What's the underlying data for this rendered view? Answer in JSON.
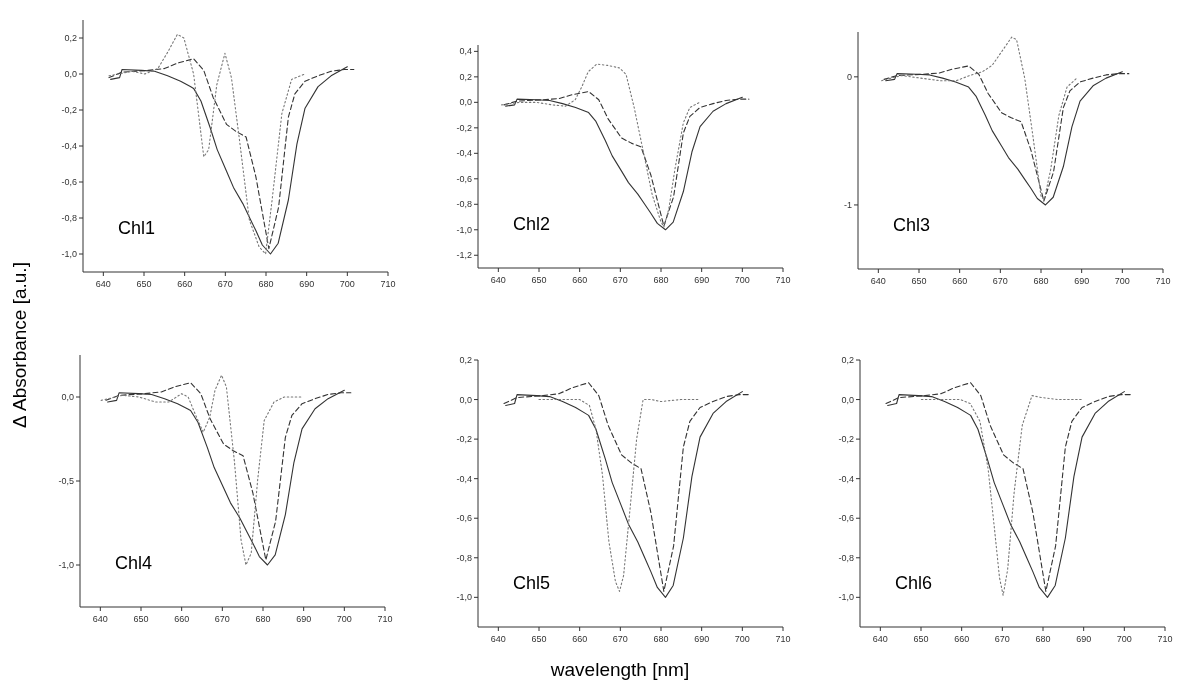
{
  "chart_data": [
    {
      "type": "line",
      "ylabel": "Δ Absorbance [a.u.]",
      "annotations": [
        "Chl1"
      ],
      "xlim": [
        635,
        710
      ],
      "ylim": [
        -1.1,
        0.3
      ],
      "xticks": [
        640,
        650,
        660,
        670,
        680,
        690,
        700,
        710
      ],
      "yticks": [
        {
          "value": -1.0,
          "label": "-1,0"
        },
        {
          "value": -0.8,
          "label": "-0,8"
        },
        {
          "value": -0.6,
          "label": "-0,6"
        },
        {
          "value": -0.4,
          "label": "-0,4"
        },
        {
          "value": -0.2,
          "label": "-0,2"
        },
        {
          "value": 0,
          "label": "0,0"
        },
        {
          "value": 0.2,
          "label": "0,2"
        }
      ],
      "series": [
        {
          "color": "#333333",
          "line_style": "solid",
          "x": [
            641.8,
            644,
            644.6,
            649.4,
            652.6,
            655.8,
            659,
            661.4,
            662.2,
            664,
            666.3,
            668,
            670.3,
            672,
            674.3,
            676,
            677.5,
            679.1,
            681.1,
            683,
            685.5,
            687.6,
            689.6,
            692.8,
            696,
            700
          ],
          "values": [
            -0.03,
            -0.02,
            0.025,
            0.02,
            0.015,
            -0.01,
            -0.04,
            -0.07,
            -0.08,
            -0.15,
            -0.3,
            -0.42,
            -0.54,
            -0.63,
            -0.72,
            -0.8,
            -0.87,
            -0.95,
            -1.0,
            -0.94,
            -0.7,
            -0.39,
            -0.19,
            -0.07,
            -0.01,
            0.04
          ]
        },
        {
          "color": "#333333",
          "line_style": "dashed",
          "x": [
            641.4,
            644.6,
            651,
            655,
            658.2,
            662.2,
            664.7,
            667,
            670.3,
            672.7,
            675.1,
            677.5,
            680.7,
            683.1,
            685.5,
            687.1,
            689.6,
            692.8,
            696,
            699.2,
            701.6
          ],
          "values": [
            -0.02,
            0.01,
            0.02,
            0.03,
            0.06,
            0.085,
            0.02,
            -0.13,
            -0.28,
            -0.32,
            -0.35,
            -0.57,
            -0.97,
            -0.74,
            -0.24,
            -0.11,
            -0.04,
            -0.01,
            0.015,
            0.025,
            0.025
          ]
        },
        {
          "color": "#777777",
          "line_style": "dotted",
          "x": [
            641.4,
            647,
            650.2,
            653.4,
            655.8,
            658.2,
            659.8,
            662.2,
            664.7,
            665.9,
            667.9,
            669.9,
            671.5,
            673.5,
            675.9,
            678.3,
            679.9,
            681.5,
            683.9,
            686.3,
            689.6
          ],
          "values": [
            -0.01,
            0.015,
            0.0,
            0.03,
            0.12,
            0.22,
            0.2,
            0.0,
            -0.46,
            -0.42,
            -0.06,
            0.115,
            -0.02,
            -0.37,
            -0.81,
            -0.96,
            -1.0,
            -0.7,
            -0.22,
            -0.03,
            0.0
          ]
        }
      ]
    },
    {
      "type": "line",
      "annotations": [
        "Chl2"
      ],
      "xlim": [
        635,
        710
      ],
      "ylim": [
        -1.3,
        0.45
      ],
      "xticks": [
        640,
        650,
        660,
        670,
        680,
        690,
        700,
        710
      ],
      "yticks": [
        {
          "value": -1.2,
          "label": "-1,2"
        },
        {
          "value": -1.0,
          "label": "-1,0"
        },
        {
          "value": -0.8,
          "label": "-0,8"
        },
        {
          "value": -0.6,
          "label": "-0,6"
        },
        {
          "value": -0.4,
          "label": "-0,4"
        },
        {
          "value": -0.2,
          "label": "-0,2"
        },
        {
          "value": 0,
          "label": "0,0"
        },
        {
          "value": 0.2,
          "label": "0,2"
        },
        {
          "value": 0.4,
          "label": "0,4"
        }
      ],
      "series": [
        {
          "color": "#333333",
          "line_style": "solid",
          "x": [
            641.8,
            644,
            644.6,
            649.4,
            652.6,
            655.8,
            659,
            661.4,
            662.2,
            664,
            666.3,
            668,
            670.3,
            672,
            674.3,
            676,
            677.5,
            679.1,
            681.1,
            683,
            685.5,
            687.6,
            689.6,
            692.8,
            696,
            700
          ],
          "values": [
            -0.03,
            -0.02,
            0.025,
            0.02,
            0.015,
            -0.01,
            -0.04,
            -0.07,
            -0.08,
            -0.15,
            -0.3,
            -0.42,
            -0.54,
            -0.63,
            -0.72,
            -0.8,
            -0.87,
            -0.95,
            -1.0,
            -0.94,
            -0.7,
            -0.39,
            -0.19,
            -0.07,
            -0.01,
            0.04
          ]
        },
        {
          "color": "#333333",
          "line_style": "dashed",
          "x": [
            641.4,
            644.6,
            651,
            655,
            658.2,
            662.2,
            664.7,
            667,
            670.3,
            672.7,
            675.1,
            677.5,
            680.7,
            683.1,
            685.5,
            687.1,
            689.6,
            692.8,
            696,
            699.2,
            701.6
          ],
          "values": [
            -0.02,
            0.01,
            0.02,
            0.03,
            0.06,
            0.085,
            0.02,
            -0.13,
            -0.28,
            -0.32,
            -0.35,
            -0.57,
            -0.97,
            -0.74,
            -0.24,
            -0.11,
            -0.04,
            -0.01,
            0.015,
            0.025,
            0.025
          ]
        },
        {
          "color": "#777777",
          "line_style": "dotted",
          "x": [
            640.8,
            645.2,
            649.3,
            653.3,
            656.5,
            658.9,
            660.5,
            662.1,
            664.2,
            666.9,
            669.8,
            671.4,
            673.4,
            675.8,
            677.8,
            679.9,
            680.7,
            681.9,
            683.5,
            685.5,
            687.1,
            689.5
          ],
          "values": [
            -0.02,
            0.0,
            0.0,
            -0.02,
            -0.03,
            0.02,
            0.12,
            0.24,
            0.3,
            0.29,
            0.27,
            0.22,
            -0.04,
            -0.41,
            -0.72,
            -0.93,
            -0.98,
            -0.84,
            -0.51,
            -0.16,
            -0.04,
            0.0
          ]
        }
      ]
    },
    {
      "type": "line",
      "annotations": [
        "Chl3"
      ],
      "xlim": [
        635,
        710
      ],
      "ylim": [
        -1.5,
        0.35
      ],
      "xticks": [
        640,
        650,
        660,
        670,
        680,
        690,
        700,
        710
      ],
      "yticks": [
        -1,
        0
      ],
      "series": [
        {
          "color": "#333333",
          "line_style": "solid",
          "x": [
            641.8,
            644,
            644.6,
            649.4,
            652.6,
            655.8,
            659,
            661.4,
            662.2,
            664,
            666.3,
            668,
            670.3,
            672,
            674.3,
            676,
            677.5,
            679.1,
            681.1,
            683,
            685.5,
            687.6,
            689.6,
            692.8,
            696,
            700
          ],
          "values": [
            -0.03,
            -0.02,
            0.025,
            0.02,
            0.015,
            -0.01,
            -0.04,
            -0.07,
            -0.08,
            -0.15,
            -0.3,
            -0.42,
            -0.54,
            -0.63,
            -0.72,
            -0.8,
            -0.87,
            -0.95,
            -1.0,
            -0.94,
            -0.7,
            -0.39,
            -0.19,
            -0.07,
            -0.01,
            0.04
          ]
        },
        {
          "color": "#333333",
          "line_style": "dashed",
          "x": [
            641.4,
            644.6,
            651,
            655,
            658.2,
            662.2,
            664.7,
            667,
            670.3,
            672.7,
            675.1,
            677.5,
            680.7,
            683.1,
            685.5,
            687.1,
            689.6,
            692.8,
            696,
            699.2,
            701.6
          ],
          "values": [
            -0.02,
            0.01,
            0.02,
            0.03,
            0.06,
            0.085,
            0.02,
            -0.13,
            -0.28,
            -0.32,
            -0.35,
            -0.57,
            -0.97,
            -0.74,
            -0.24,
            -0.11,
            -0.04,
            -0.01,
            0.015,
            0.025,
            0.025
          ]
        },
        {
          "color": "#777777",
          "line_style": "dotted",
          "x": [
            640.8,
            645.6,
            650.4,
            655.2,
            659.2,
            662.4,
            665.6,
            668,
            670.4,
            672.8,
            674,
            676,
            678,
            680,
            680.8,
            682.4,
            684.4,
            686.4,
            688.8
          ],
          "values": [
            -0.03,
            0.01,
            -0.01,
            -0.03,
            -0.03,
            0.01,
            0.04,
            0.09,
            0.2,
            0.31,
            0.29,
            -0.01,
            -0.46,
            -0.93,
            -0.96,
            -0.72,
            -0.3,
            -0.08,
            -0.01
          ]
        }
      ]
    },
    {
      "type": "line",
      "annotations": [
        "Chl4"
      ],
      "xlim": [
        635,
        710
      ],
      "ylim": [
        -1.25,
        0.25
      ],
      "xticks": [
        640,
        650,
        660,
        670,
        680,
        690,
        700,
        710
      ],
      "yticks": [
        {
          "value": -1.0,
          "label": "-1,0"
        },
        {
          "value": -0.5,
          "label": "-0,5"
        },
        {
          "value": 0,
          "label": "0,0"
        }
      ],
      "series": [
        {
          "color": "#333333",
          "line_style": "solid",
          "x": [
            641.8,
            644,
            644.6,
            649.4,
            652.6,
            655.8,
            659,
            661.4,
            662.2,
            664,
            666.3,
            668,
            670.3,
            672,
            674.3,
            676,
            677.5,
            679.1,
            681.1,
            683,
            685.5,
            687.6,
            689.6,
            692.8,
            696,
            700
          ],
          "values": [
            -0.03,
            -0.02,
            0.025,
            0.02,
            0.015,
            -0.01,
            -0.04,
            -0.07,
            -0.08,
            -0.15,
            -0.3,
            -0.42,
            -0.54,
            -0.63,
            -0.72,
            -0.8,
            -0.87,
            -0.95,
            -1.0,
            -0.94,
            -0.7,
            -0.39,
            -0.19,
            -0.07,
            -0.01,
            0.04
          ]
        },
        {
          "color": "#333333",
          "line_style": "dashed",
          "x": [
            641.4,
            644.6,
            651,
            655,
            658.2,
            662.2,
            664.7,
            667,
            670.3,
            672.7,
            675.1,
            677.5,
            680.7,
            683.1,
            685.5,
            687.1,
            689.6,
            692.8,
            696,
            699.2,
            701.6
          ],
          "values": [
            -0.02,
            0.01,
            0.02,
            0.03,
            0.06,
            0.085,
            0.02,
            -0.13,
            -0.28,
            -0.32,
            -0.35,
            -0.57,
            -0.97,
            -0.74,
            -0.24,
            -0.11,
            -0.04,
            -0.01,
            0.015,
            0.025,
            0.025
          ]
        },
        {
          "color": "#777777",
          "line_style": "dotted",
          "x": [
            640.2,
            645.5,
            649.5,
            653.6,
            656.8,
            660,
            661.6,
            663.3,
            665.3,
            666.9,
            668.2,
            669.8,
            671,
            673,
            674.6,
            675.8,
            677.1,
            678.7,
            680.3,
            682.7,
            685.2,
            689.6
          ],
          "values": [
            -0.02,
            0.01,
            0.0,
            -0.03,
            -0.03,
            0.02,
            0.0,
            -0.1,
            -0.21,
            -0.12,
            0.04,
            0.13,
            0.06,
            -0.39,
            -0.85,
            -1.0,
            -0.93,
            -0.49,
            -0.14,
            -0.03,
            0.0,
            0.0
          ]
        }
      ]
    },
    {
      "type": "line",
      "xlabel": "wavelength [nm]",
      "annotations": [
        "Chl5"
      ],
      "xlim": [
        635,
        710
      ],
      "ylim": [
        -1.15,
        0.2
      ],
      "xticks": [
        640,
        650,
        660,
        670,
        680,
        690,
        700,
        710
      ],
      "yticks": [
        {
          "value": -1.0,
          "label": "-1,0"
        },
        {
          "value": -0.8,
          "label": "-0,8"
        },
        {
          "value": -0.6,
          "label": "-0,6"
        },
        {
          "value": -0.4,
          "label": "-0,4"
        },
        {
          "value": -0.2,
          "label": "-0,2"
        },
        {
          "value": 0,
          "label": "0,0"
        },
        {
          "value": 0.2,
          "label": "0,2"
        }
      ],
      "series": [
        {
          "color": "#333333",
          "line_style": "solid",
          "x": [
            641.8,
            644,
            644.6,
            649.4,
            652.6,
            655.8,
            659,
            661.4,
            662.2,
            664,
            666.3,
            668,
            670.3,
            672,
            674.3,
            676,
            677.5,
            679.1,
            681.1,
            683,
            685.5,
            687.6,
            689.6,
            692.8,
            696,
            700
          ],
          "values": [
            -0.03,
            -0.02,
            0.025,
            0.02,
            0.015,
            -0.01,
            -0.04,
            -0.07,
            -0.08,
            -0.15,
            -0.3,
            -0.42,
            -0.54,
            -0.63,
            -0.72,
            -0.8,
            -0.87,
            -0.95,
            -1.0,
            -0.94,
            -0.7,
            -0.39,
            -0.19,
            -0.07,
            -0.01,
            0.04
          ]
        },
        {
          "color": "#333333",
          "line_style": "dashed",
          "x": [
            641.4,
            644.6,
            651,
            655,
            658.2,
            662.2,
            664.7,
            667,
            670.3,
            672.7,
            675.1,
            677.5,
            680.7,
            683.1,
            685.5,
            687.1,
            689.6,
            692.8,
            696,
            699.2,
            701.6
          ],
          "values": [
            -0.02,
            0.01,
            0.02,
            0.03,
            0.06,
            0.085,
            0.02,
            -0.13,
            -0.28,
            -0.32,
            -0.35,
            -0.57,
            -0.97,
            -0.74,
            -0.24,
            -0.11,
            -0.04,
            -0.01,
            0.015,
            0.025,
            0.025
          ]
        },
        {
          "color": "#777777",
          "line_style": "dotted",
          "x": [
            650,
            654.4,
            660,
            662.4,
            664,
            665.6,
            667.2,
            668.8,
            669.8,
            670.8,
            672.4,
            674,
            675.6,
            677.6,
            680,
            684.8,
            689.6
          ],
          "values": [
            0.0,
            0.0,
            0.0,
            -0.03,
            -0.15,
            -0.38,
            -0.72,
            -0.92,
            -0.97,
            -0.89,
            -0.55,
            -0.2,
            0.0,
            0.0,
            -0.01,
            0.0,
            0.0
          ]
        }
      ]
    },
    {
      "type": "line",
      "annotations": [
        "Chl6"
      ],
      "xlim": [
        635,
        710
      ],
      "ylim": [
        -1.15,
        0.2
      ],
      "xticks": [
        640,
        650,
        660,
        670,
        680,
        690,
        700,
        710
      ],
      "yticks": [
        {
          "value": -1.0,
          "label": "-1,0"
        },
        {
          "value": -0.8,
          "label": "-0,8"
        },
        {
          "value": -0.6,
          "label": "-0,6"
        },
        {
          "value": -0.4,
          "label": "-0,4"
        },
        {
          "value": -0.2,
          "label": "-0,2"
        },
        {
          "value": 0,
          "label": "0,0"
        },
        {
          "value": 0.2,
          "label": "0,2"
        }
      ],
      "series": [
        {
          "color": "#333333",
          "line_style": "solid",
          "x": [
            641.8,
            644,
            644.6,
            649.4,
            652.6,
            655.8,
            659,
            661.4,
            662.2,
            664,
            666.3,
            668,
            670.3,
            672,
            674.3,
            676,
            677.5,
            679.1,
            681.1,
            683,
            685.5,
            687.6,
            689.6,
            692.8,
            696,
            700
          ],
          "values": [
            -0.03,
            -0.02,
            0.025,
            0.02,
            0.015,
            -0.01,
            -0.04,
            -0.07,
            -0.08,
            -0.15,
            -0.3,
            -0.42,
            -0.54,
            -0.63,
            -0.72,
            -0.8,
            -0.87,
            -0.95,
            -1.0,
            -0.94,
            -0.7,
            -0.39,
            -0.19,
            -0.07,
            -0.01,
            0.04
          ]
        },
        {
          "color": "#333333",
          "line_style": "dashed",
          "x": [
            641.4,
            644.6,
            651,
            655,
            658.2,
            662.2,
            664.7,
            667,
            670.3,
            672.7,
            675.1,
            677.5,
            680.7,
            683.1,
            685.5,
            687.1,
            689.6,
            692.8,
            696,
            699.2,
            701.6
          ],
          "values": [
            -0.02,
            0.01,
            0.02,
            0.03,
            0.06,
            0.085,
            0.02,
            -0.13,
            -0.28,
            -0.32,
            -0.35,
            -0.57,
            -0.97,
            -0.74,
            -0.24,
            -0.11,
            -0.04,
            -0.01,
            0.015,
            0.025,
            0.025
          ]
        },
        {
          "color": "#777777",
          "line_style": "dotted",
          "x": [
            650.1,
            654.9,
            659.7,
            662.1,
            664.5,
            666.5,
            668.1,
            669.3,
            670.2,
            671.3,
            672.9,
            674.9,
            677.3,
            679.7,
            683.7,
            689.7
          ],
          "values": [
            0.0,
            0.0,
            0.0,
            -0.02,
            -0.11,
            -0.35,
            -0.66,
            -0.9,
            -0.99,
            -0.86,
            -0.47,
            -0.13,
            0.02,
            0.01,
            0.0,
            0.0
          ]
        }
      ]
    }
  ]
}
